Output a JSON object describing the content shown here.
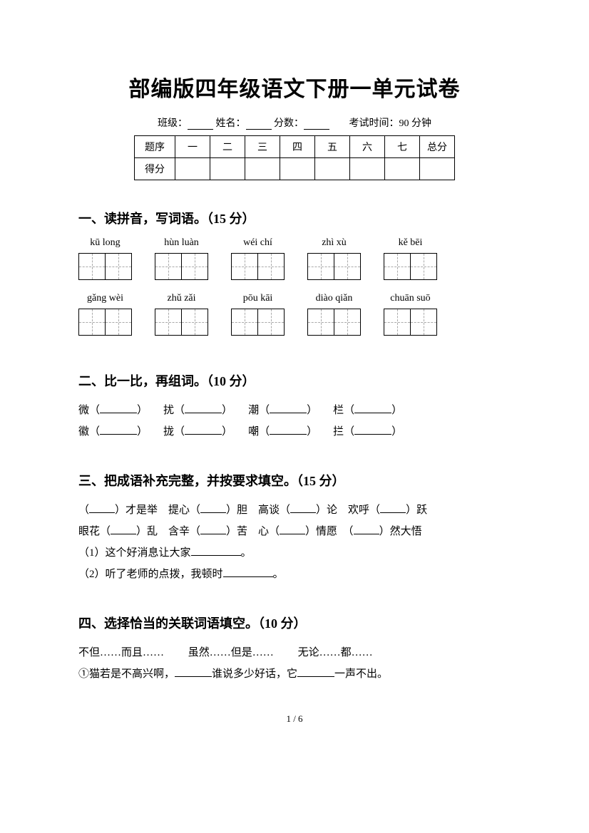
{
  "title": "部编版四年级语文下册一单元试卷",
  "info": {
    "class_label": "班级：",
    "name_label": "姓名：",
    "score_label": "分数：",
    "exam_time": "考试时间：90 分钟"
  },
  "score_table": {
    "row1": {
      "label": "题序",
      "cols": [
        "一",
        "二",
        "三",
        "四",
        "五",
        "六",
        "七",
        "总分"
      ]
    },
    "row2_label": "得分"
  },
  "s1": {
    "title": "一、读拼音，写词语。（15 分）",
    "row1": [
      {
        "pinyin": "kū long",
        "cells": 2
      },
      {
        "pinyin": "hùn luàn",
        "cells": 2
      },
      {
        "pinyin": "wéi chí",
        "cells": 2
      },
      {
        "pinyin": "zhì xù",
        "cells": 2
      },
      {
        "pinyin": "kě bēi",
        "cells": 2
      }
    ],
    "row2": [
      {
        "pinyin": "gǎng wèi",
        "cells": 2
      },
      {
        "pinyin": "zhǔ zǎi",
        "cells": 2
      },
      {
        "pinyin": "pōu kāi",
        "cells": 2
      },
      {
        "pinyin": "diào qiǎn",
        "cells": 2
      },
      {
        "pinyin": "chuān suō",
        "cells": 2
      }
    ]
  },
  "s2": {
    "title": "二、比一比，再组词。（10 分）",
    "pairs_row1": [
      "微",
      "扰",
      "潮",
      "栏"
    ],
    "pairs_row2": [
      "徽",
      "拢",
      "嘲",
      "拦"
    ]
  },
  "s3": {
    "title": "三、把成语补充完整，并按要求填空。（15 分）",
    "line1_parts": [
      "（",
      "）才是举　提心（",
      "）胆　高谈（",
      "）论　欢呼（",
      "）跃"
    ],
    "line2_parts": [
      "眼花（",
      "）乱　含辛（",
      "）苦　心（",
      "）情愿　（",
      "）然大悟"
    ],
    "q1": "（1）这个好消息让大家",
    "q1_end": "。",
    "q2": "（2）听了老师的点拨，我顿时",
    "q2_end": "。"
  },
  "s4": {
    "title": "四、选择恰当的关联词语填空。（10 分）",
    "options": [
      "不但……而且……",
      "虽然……但是……",
      "无论……都……"
    ],
    "q1_pre": "①猫若是不高兴啊，",
    "q1_mid": "谁说多少好话，它",
    "q1_end": "一声不出。"
  },
  "footer": "1 / 6"
}
